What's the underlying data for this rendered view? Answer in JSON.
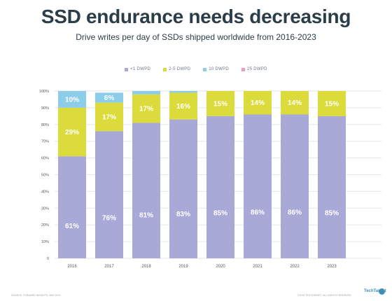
{
  "title": "SSD endurance needs decreasing",
  "subtitle": "Drive writes per day of SSDs shipped worldwide from 2016-2023",
  "source": "SOURCE: FORWARD INSIGHTS, MAY 2019",
  "copyright": "©2019 TECHTARGET. ALL RIGHTS RESERVED",
  "logo": "TechTarget",
  "colors": {
    "lt1": "#a9a9d8",
    "2to5": "#dbdb3b",
    "10": "#8ccde9",
    "25": "#ea9ec2",
    "gridline": "#e6e6e6",
    "axis_text": "#555555",
    "label_text": "#ffffff"
  },
  "chart_data": {
    "type": "bar",
    "stacked": true,
    "categories": [
      "2016",
      "2017",
      "2018",
      "2019",
      "2020",
      "2021",
      "2022",
      "2023"
    ],
    "series": [
      {
        "name": "<1 DWPD",
        "color_key": "lt1",
        "values": [
          61,
          76,
          81,
          83,
          85,
          86,
          86,
          85
        ]
      },
      {
        "name": "2-5 DWPD",
        "color_key": "2to5",
        "values": [
          29,
          17,
          17,
          16,
          15,
          14,
          14,
          15
        ]
      },
      {
        "name": "10 DWPD",
        "color_key": "10",
        "values": [
          10,
          6,
          2,
          1,
          0,
          0,
          0,
          0
        ]
      },
      {
        "name": "25 DWPD",
        "color_key": "25",
        "values": [
          1,
          0,
          0,
          0,
          0,
          0,
          0,
          0
        ]
      }
    ],
    "data_labels": [
      [
        "61%",
        "76%",
        "81%",
        "83%",
        "85%",
        "86%",
        "86%",
        "85%"
      ],
      [
        "29%",
        "17%",
        "17%",
        "16%",
        "15%",
        "14%",
        "14%",
        "15%"
      ],
      [
        "10%",
        "6%",
        "",
        "",
        "",
        "",
        "",
        ""
      ],
      [
        "",
        "",
        "",
        "",
        "",
        "",
        "",
        ""
      ]
    ],
    "y_ticks": [
      "0",
      "10%",
      "20%",
      "30%",
      "40%",
      "50%",
      "60%",
      "70%",
      "80%",
      "90%",
      "100%"
    ],
    "ylim": [
      0,
      100
    ],
    "grid": true,
    "legend_position": "top-center"
  }
}
